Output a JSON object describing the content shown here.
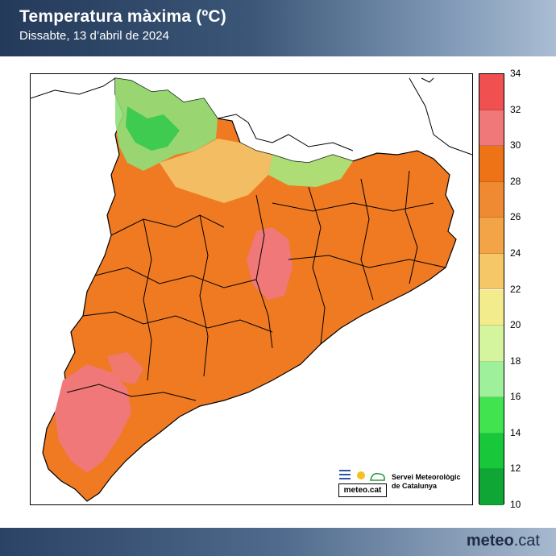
{
  "header": {
    "title": "Temperatura màxima (ºC)",
    "subtitle": "Dissabte, 13 d’abril de 2024"
  },
  "legend": {
    "ticks": [
      "34",
      "32",
      "30",
      "28",
      "26",
      "24",
      "22",
      "20",
      "18",
      "16",
      "14",
      "12",
      "10"
    ],
    "colors": [
      "#f05050",
      "#f07878",
      "#ee7316",
      "#f08a32",
      "#f3a446",
      "#f6c766",
      "#f3ec8c",
      "#d4f59d",
      "#9ef09a",
      "#41e44e",
      "#18c83a",
      "#0fa636"
    ]
  },
  "logo": {
    "word": "meteo.cat",
    "org_line1": "Servei Meteorològic",
    "org_line2": "de Catalunya"
  },
  "footer": {
    "brand_bold": "meteo",
    "brand_rest": ".cat"
  }
}
